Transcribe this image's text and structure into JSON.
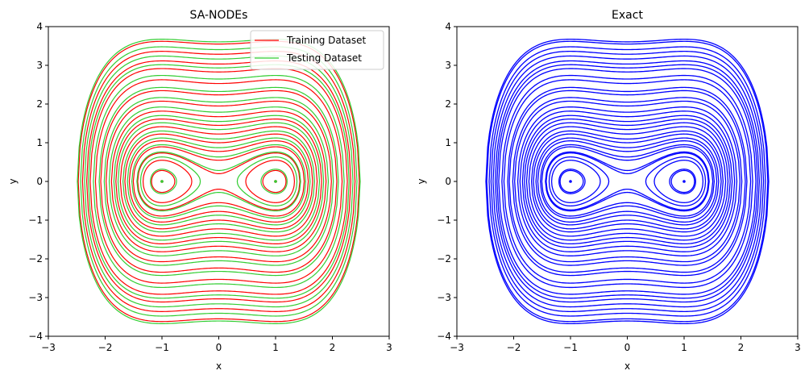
{
  "figure": {
    "description_free": true
  },
  "chart_data": [
    {
      "type": "line",
      "title": "SA-NODEs",
      "xlabel": "x",
      "ylabel": "y",
      "xlim": [
        -3,
        3
      ],
      "ylim": [
        -4,
        4
      ],
      "xticks": [
        "−3",
        "−2",
        "−1",
        "0",
        "1",
        "2",
        "3"
      ],
      "yticks": [
        "−4",
        "−3",
        "−2",
        "−1",
        "0",
        "1",
        "2",
        "3",
        "4"
      ],
      "legend": {
        "placement": "top-right",
        "entries": [
          {
            "label": "Training Dataset",
            "color": "#ff0000"
          },
          {
            "label": "Testing Dataset",
            "color": "#32cd32"
          }
        ]
      },
      "series": [
        {
          "name": "Training Dataset",
          "color": "#ff0000",
          "energy_levels": [
            -0.21,
            -0.1,
            0.02,
            0.15,
            0.3,
            0.5,
            0.75,
            1.05,
            1.4,
            1.9,
            2.5,
            3.2,
            4.0,
            4.6,
            5.4,
            6.3
          ],
          "well_points": [
            [
              -1,
              0
            ],
            [
              1,
              0
            ]
          ]
        },
        {
          "name": "Testing Dataset",
          "color": "#32cd32",
          "energy_levels": [
            -0.2,
            -0.05,
            0.04,
            0.2,
            0.38,
            0.6,
            0.9,
            1.2,
            1.6,
            2.1,
            2.7,
            3.5,
            4.3,
            5.0,
            5.8,
            6.5
          ],
          "well_points": [
            [
              -1,
              0
            ],
            [
              1,
              0
            ]
          ]
        }
      ]
    },
    {
      "type": "line",
      "title": "Exact",
      "xlabel": "x",
      "ylabel": "y",
      "xlim": [
        -3,
        3
      ],
      "ylim": [
        -4,
        4
      ],
      "xticks": [
        "−3",
        "−2",
        "−1",
        "0",
        "1",
        "2",
        "3"
      ],
      "yticks": [
        "−4",
        "−3",
        "−2",
        "−1",
        "0",
        "1",
        "2",
        "3",
        "4"
      ],
      "series": [
        {
          "name": "Exact",
          "color": "#0000ff",
          "energy_levels": [
            -0.21,
            -0.2,
            -0.1,
            -0.05,
            0.02,
            0.04,
            0.15,
            0.2,
            0.3,
            0.38,
            0.5,
            0.6,
            0.75,
            0.9,
            1.05,
            1.2,
            1.4,
            1.6,
            1.9,
            2.1,
            2.5,
            2.7,
            3.2,
            3.5,
            4.0,
            4.3,
            4.6,
            5.0,
            5.4,
            5.8,
            6.3,
            6.5
          ],
          "well_points": [
            [
              -1,
              0
            ],
            [
              1,
              0
            ]
          ]
        }
      ]
    }
  ]
}
